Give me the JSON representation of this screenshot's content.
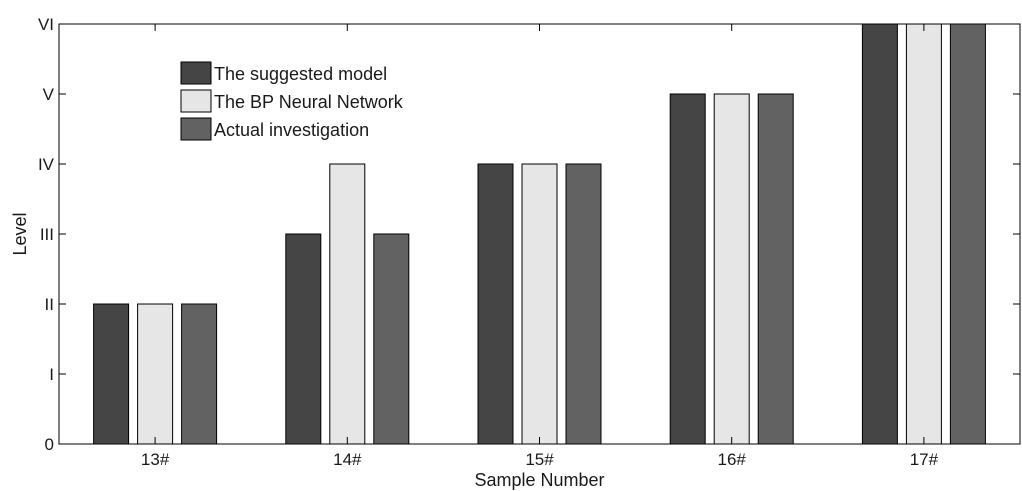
{
  "chart_data": {
    "type": "bar",
    "xlabel": "Sample Number",
    "ylabel": "Level",
    "categories": [
      "13#",
      "14#",
      "15#",
      "16#",
      "17#"
    ],
    "y_ticks": [
      {
        "value": 0,
        "label": "0"
      },
      {
        "value": 1,
        "label": "I"
      },
      {
        "value": 2,
        "label": "II"
      },
      {
        "value": 3,
        "label": "III"
      },
      {
        "value": 4,
        "label": "IV"
      },
      {
        "value": 5,
        "label": "V"
      },
      {
        "value": 6,
        "label": "VI"
      }
    ],
    "ylim": [
      0,
      6
    ],
    "grid": false,
    "legend_position": "top-left",
    "series": [
      {
        "name": "The suggested model",
        "color": "#454545",
        "values": [
          2,
          3,
          4,
          5,
          6
        ]
      },
      {
        "name": "The BP Neural Network",
        "color": "#e6e6e6",
        "values": [
          2,
          4,
          4,
          5,
          6
        ]
      },
      {
        "name": "Actual investigation",
        "color": "#626262",
        "values": [
          2,
          3,
          4,
          5,
          6
        ]
      }
    ]
  }
}
